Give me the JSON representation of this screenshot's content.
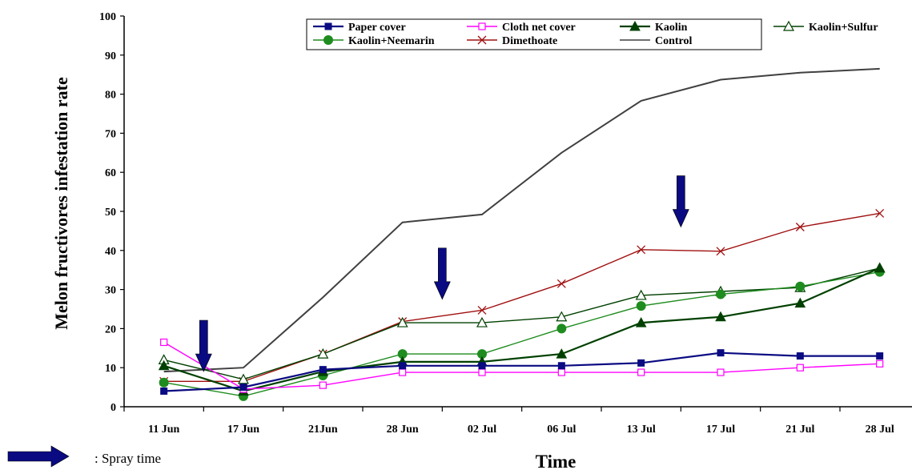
{
  "chart_data": {
    "type": "line",
    "ylabel": "Melon fructivores infestation rate",
    "xlabel": "Time",
    "ylim": [
      0,
      100
    ],
    "yticks": [
      0,
      10,
      20,
      30,
      40,
      50,
      60,
      70,
      80,
      90,
      100
    ],
    "categories": [
      "11 Jun",
      "17 Jun",
      "21Jun",
      "28 Jun",
      "02 Jul",
      "06 Jul",
      "13 Jul",
      "17 Jul",
      "21 Jul",
      "28 Jul"
    ],
    "grid": false,
    "legend_position": "top-right",
    "series": [
      {
        "name": "Paper cover",
        "color": "#0a0a82",
        "marker": "square-filled",
        "x": [
          0.5,
          1.5,
          2.5,
          3.5,
          4.5,
          5.5,
          6.5,
          7.5,
          8.5,
          9.5
        ],
        "values": [
          4,
          5,
          9.5,
          10.5,
          10.5,
          10.5,
          11.2,
          13.8,
          13,
          13
        ]
      },
      {
        "name": "Cloth net cover",
        "color": "#ff00ff",
        "marker": "square-open",
        "x": [
          0.5,
          1.5,
          2.5,
          3.5,
          4.5,
          5.5,
          6.5,
          7.5,
          8.5,
          9.5
        ],
        "values": [
          16.5,
          4.5,
          5.5,
          8.8,
          8.8,
          8.8,
          8.8,
          8.8,
          10,
          11
        ]
      },
      {
        "name": "Kaolin",
        "color": "#004000",
        "marker": "triangle-filled",
        "x": [
          0.5,
          1.5,
          2.5,
          3.5,
          4.5,
          5.5,
          6.5,
          7.5,
          8.5,
          9.5
        ],
        "values": [
          10.5,
          4,
          9,
          11.5,
          11.5,
          13.5,
          21.5,
          23,
          26.5,
          35.5
        ]
      },
      {
        "name": "Kaolin+Sulfur",
        "color": "#004000",
        "marker": "triangle-open",
        "x": [
          0.5,
          1.5,
          2.5,
          3.5,
          4.5,
          5.5,
          6.5,
          7.5,
          8.5,
          9.5
        ],
        "values": [
          12,
          7,
          13.5,
          21.5,
          21.5,
          23,
          28.5,
          29.5,
          30.5,
          35.5
        ]
      },
      {
        "name": "Kaolin+Neemarin",
        "color": "#1e8c1e",
        "marker": "circle-filled",
        "x": [
          0.5,
          1.5,
          2.5,
          3.5,
          4.5,
          5.5,
          6.5,
          7.5,
          8.5,
          9.5
        ],
        "values": [
          6.2,
          2.7,
          8,
          13.5,
          13.5,
          20,
          25.8,
          28.8,
          30.8,
          34.5
        ]
      },
      {
        "name": "Dimethoate",
        "color": "#a01010",
        "marker": "x",
        "x": [
          0.5,
          1.5,
          2.5,
          3.5,
          4.5,
          5.5,
          6.5,
          7.5,
          8.5,
          9.5
        ],
        "values": [
          6.5,
          6.5,
          13.5,
          21.8,
          24.7,
          31.5,
          40.2,
          39.8,
          46,
          49.5
        ]
      },
      {
        "name": "Control",
        "color": "#404040",
        "marker": "none",
        "x": [
          0.5,
          1.5,
          2.5,
          3.5,
          4.5,
          5.5,
          6.5,
          7.5,
          8.5,
          9.5
        ],
        "values": [
          9,
          10,
          28,
          47.2,
          49.2,
          65,
          78.3,
          83.7,
          85.5,
          86.5
        ]
      }
    ],
    "annotations": {
      "spray_arrows_color": "#0a0a82",
      "spray_arrows": [
        {
          "x": 1.0,
          "y": 9
        },
        {
          "x": 4.0,
          "y": 27.5
        },
        {
          "x": 7.0,
          "y": 46
        }
      ],
      "spray_legend_label": ": Spray time"
    }
  }
}
